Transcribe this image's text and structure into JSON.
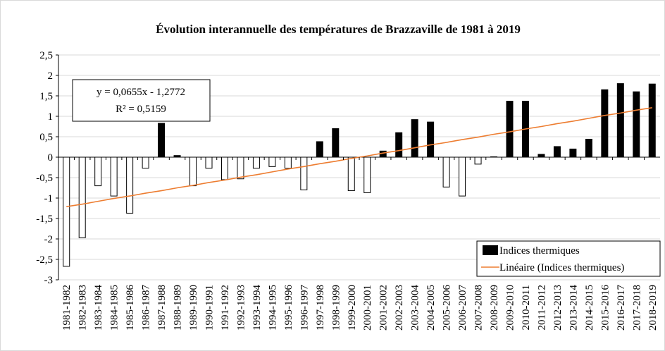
{
  "chart_data": {
    "type": "bar",
    "title": "Évolution interannuelle des températures de Brazzaville de 1981 à 2019",
    "categories": [
      "1981-1982",
      "1982-1983",
      "1983-1984",
      "1984-1985",
      "1985-1986",
      "1986-1987",
      "1987-1988",
      "1988-1989",
      "1989-1990",
      "1990-1991",
      "1991-1992",
      "1992-1993",
      "1993-1994",
      "1994-1995",
      "1995-1996",
      "1996-1997",
      "1997-1998",
      "1998-1999",
      "1999-2000",
      "2000-2001",
      "2001-2002",
      "2002-2003",
      "2003-2004",
      "2004-2005",
      "2005-2006",
      "2006-2007",
      "2007-2008",
      "2008-2009",
      "2009-2010",
      "2010-2011",
      "2011-2012",
      "2012-2013",
      "2013-2014",
      "2014-2015",
      "2015-2016",
      "2016-2017",
      "2017-2018",
      "2018-2019"
    ],
    "series": [
      {
        "name": "Indices thermiques",
        "type": "bar",
        "color": "#000000",
        "negative_color": "#ffffff",
        "values": [
          -2.67,
          -1.97,
          -0.7,
          -0.95,
          -1.37,
          -0.27,
          0.83,
          0.04,
          -0.7,
          -0.27,
          -0.55,
          -0.53,
          -0.27,
          -0.23,
          -0.27,
          -0.8,
          0.38,
          0.7,
          -0.82,
          -0.87,
          0.15,
          0.6,
          0.92,
          0.86,
          -0.73,
          -0.95,
          -0.17,
          0.01,
          1.37,
          1.37,
          0.07,
          0.26,
          0.2,
          0.44,
          1.65,
          1.8,
          1.6,
          1.79
        ]
      },
      {
        "name": "Linéaire (Indices thermiques)",
        "type": "line",
        "color": "#ed7d31",
        "values": [
          -1.21,
          -1.15,
          -1.08,
          -1.01,
          -0.95,
          -0.88,
          -0.82,
          -0.75,
          -0.69,
          -0.62,
          -0.56,
          -0.49,
          -0.43,
          -0.36,
          -0.29,
          -0.23,
          -0.16,
          -0.1,
          -0.03,
          0.03,
          0.1,
          0.16,
          0.23,
          0.3,
          0.36,
          0.43,
          0.49,
          0.56,
          0.62,
          0.69,
          0.75,
          0.82,
          0.88,
          0.95,
          1.02,
          1.08,
          1.15,
          1.21
        ]
      }
    ],
    "annotations": [
      "y = 0,0655x - 1,2772",
      "R² = 0,5159"
    ],
    "ylim": [
      -3,
      2.5
    ],
    "yticks": [
      {
        "value": 2.5,
        "label": "2,5"
      },
      2,
      {
        "value": 1.5,
        "label": "1,5"
      },
      1,
      {
        "value": 0.5,
        "label": "0,5"
      },
      0,
      {
        "value": -0.5,
        "label": "-0,5"
      },
      -1,
      {
        "value": -1.5,
        "label": "-1,5"
      },
      -2,
      {
        "value": -2.5,
        "label": "-2,5"
      },
      -3
    ],
    "grid": true,
    "legend": "bottom-right"
  }
}
